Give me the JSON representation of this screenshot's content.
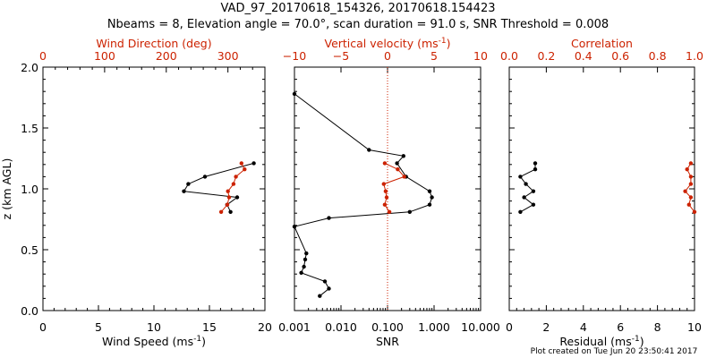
{
  "title_line1": "VAD_97_20170618_154326, 20170618.154423",
  "title_line2": "Nbeams = 8, Elevation angle = 70.0°, scan duration = 91.0 s, SNR Threshold = 0.008",
  "footer": "Plot created on Tue Jun 20 23:50:41 2017",
  "colors": {
    "primary": "#000000",
    "secondary": "#cc2200"
  },
  "chart_data": [
    {
      "type": "line",
      "panel": "wind",
      "ylabel": "z (km AGL)",
      "ylim": [
        0,
        2
      ],
      "yticks": [
        "0.0",
        "0.5",
        "1.0",
        "1.5",
        "2.0"
      ],
      "xlabel_bottom": "Wind Speed (ms",
      "xlabel_bottom_sup": "-1",
      "xlabel_bottom_end": ")",
      "xlim_bottom": [
        0,
        20
      ],
      "xticks_bottom": [
        "0",
        "5",
        "10",
        "15",
        "20"
      ],
      "xlabel_top": "Wind Direction (deg)",
      "xlim_top": [
        0,
        360
      ],
      "xticks_top": [
        "0",
        "100",
        "200",
        "300"
      ],
      "series": [
        {
          "name": "Wind Speed",
          "axis": "bottom",
          "points": [
            [
              19.0,
              1.21
            ],
            [
              14.6,
              1.1
            ],
            [
              13.1,
              1.04
            ],
            [
              12.7,
              0.98
            ],
            [
              17.5,
              0.93
            ],
            [
              16.6,
              0.87
            ],
            [
              16.9,
              0.81
            ]
          ]
        },
        {
          "name": "Wind Direction",
          "axis": "top",
          "points": [
            [
              322,
              1.21
            ],
            [
              327,
              1.16
            ],
            [
              313,
              1.1
            ],
            [
              309,
              1.04
            ],
            [
              300,
              0.98
            ],
            [
              302,
              0.93
            ],
            [
              299,
              0.87
            ],
            [
              289,
              0.81
            ]
          ]
        }
      ]
    },
    {
      "type": "line",
      "panel": "snr",
      "xlabel_bottom": "SNR",
      "xscale_bottom": "log",
      "xlim_bottom": [
        0.001,
        10
      ],
      "xticks_bottom": [
        "0.001",
        "0.010",
        "0.100",
        "1.000",
        "10.000"
      ],
      "xlabel_top": "Vertical velocity (ms",
      "xlabel_top_sup": "-1",
      "xlabel_top_end": ")",
      "xlim_top": [
        -10,
        10
      ],
      "xticks_top": [
        "−10",
        "−5",
        "0",
        "5",
        "10"
      ],
      "zero_line_top": 0,
      "series": [
        {
          "name": "SNR",
          "axis": "bottom",
          "points": [
            [
              0.001,
              1.78
            ],
            [
              0.04,
              1.32
            ],
            [
              0.22,
              1.27
            ],
            [
              0.16,
              1.21
            ],
            [
              0.25,
              1.1
            ],
            [
              0.8,
              0.98
            ],
            [
              0.9,
              0.93
            ],
            [
              0.8,
              0.87
            ],
            [
              0.3,
              0.81
            ],
            [
              0.0055,
              0.76
            ],
            [
              0.001,
              0.69
            ],
            [
              0.0018,
              0.47
            ],
            [
              0.0017,
              0.42
            ],
            [
              0.0016,
              0.36
            ],
            [
              0.0014,
              0.31
            ],
            [
              0.0045,
              0.24
            ],
            [
              0.0055,
              0.18
            ],
            [
              0.0035,
              0.12
            ]
          ]
        },
        {
          "name": "Vertical velocity",
          "axis": "top",
          "points": [
            [
              -0.3,
              1.21
            ],
            [
              1.1,
              1.16
            ],
            [
              1.8,
              1.1
            ],
            [
              -0.4,
              1.04
            ],
            [
              -0.2,
              0.98
            ],
            [
              -0.1,
              0.93
            ],
            [
              -0.3,
              0.87
            ],
            [
              0.2,
              0.81
            ]
          ]
        }
      ]
    },
    {
      "type": "line",
      "panel": "residual",
      "xlabel_bottom": "Residual (ms",
      "xlabel_bottom_sup": "-1",
      "xlabel_bottom_end": ")",
      "xlim_bottom": [
        0,
        10
      ],
      "xticks_bottom": [
        "0",
        "2",
        "4",
        "6",
        "8",
        "10"
      ],
      "xlabel_top": "Correlation",
      "xlim_top": [
        0,
        1
      ],
      "xticks_top": [
        "0.0",
        "0.2",
        "0.4",
        "0.6",
        "0.8",
        "1.0"
      ],
      "series": [
        {
          "name": "Residual",
          "axis": "bottom",
          "points": [
            [
              1.4,
              1.21
            ],
            [
              1.4,
              1.16
            ],
            [
              0.6,
              1.1
            ],
            [
              0.9,
              1.04
            ],
            [
              1.3,
              0.98
            ],
            [
              0.8,
              0.93
            ],
            [
              1.3,
              0.87
            ],
            [
              0.6,
              0.81
            ]
          ]
        },
        {
          "name": "Correlation",
          "axis": "top",
          "points": [
            [
              0.98,
              1.21
            ],
            [
              0.96,
              1.16
            ],
            [
              0.98,
              1.1
            ],
            [
              0.98,
              1.04
            ],
            [
              0.95,
              0.98
            ],
            [
              0.98,
              0.93
            ],
            [
              0.97,
              0.87
            ],
            [
              1.0,
              0.81
            ]
          ]
        }
      ]
    }
  ]
}
